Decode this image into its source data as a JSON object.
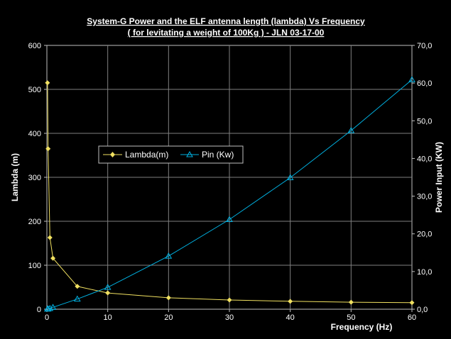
{
  "chart_data": {
    "type": "line",
    "title": "System-G Power and the ELF antenna length (lambda) Vs Frequency",
    "subtitle": "( for levitating a weight of 100Kg ) - JLN 03-17-00",
    "xlabel": "Frequency (Hz)",
    "ylabel_left": "Lambda (m)",
    "ylabel_right": "Power Input (KW)",
    "xlim": [
      0,
      60
    ],
    "ylim_left": [
      0,
      600
    ],
    "ylim_right": [
      0,
      70
    ],
    "x_ticks": [
      "0",
      "10",
      "20",
      "30",
      "40",
      "50",
      "60"
    ],
    "y_left_ticks": [
      "0",
      "100",
      "200",
      "300",
      "400",
      "500",
      "600"
    ],
    "y_right_ticks": [
      "0,0",
      "10,0",
      "20,0",
      "30,0",
      "40,0",
      "50,0",
      "60,0",
      "70,0"
    ],
    "grid": true,
    "legend_position": "center-left",
    "series": [
      {
        "name": "Lambda(m)",
        "axis": "left",
        "color": "#f0e060",
        "marker": "diamond",
        "points": [
          [
            0.1,
            515
          ],
          [
            0.2,
            365
          ],
          [
            0.5,
            163
          ],
          [
            1,
            116
          ],
          [
            5,
            52
          ],
          [
            10,
            37
          ],
          [
            20,
            26
          ],
          [
            30,
            21
          ],
          [
            40,
            18
          ],
          [
            50,
            16
          ],
          [
            60,
            15
          ]
        ]
      },
      {
        "name": "Pin (Kw)",
        "axis": "right",
        "color": "#00b0e0",
        "marker": "triangle",
        "points": [
          [
            0.1,
            0.05
          ],
          [
            0.2,
            0.1
          ],
          [
            0.5,
            0.2
          ],
          [
            1,
            0.5
          ],
          [
            5,
            2.7
          ],
          [
            10,
            5.8
          ],
          [
            20,
            14.1
          ],
          [
            30,
            23.8
          ],
          [
            40,
            34.9
          ],
          [
            50,
            47.4
          ],
          [
            60,
            60.9
          ]
        ]
      }
    ]
  }
}
